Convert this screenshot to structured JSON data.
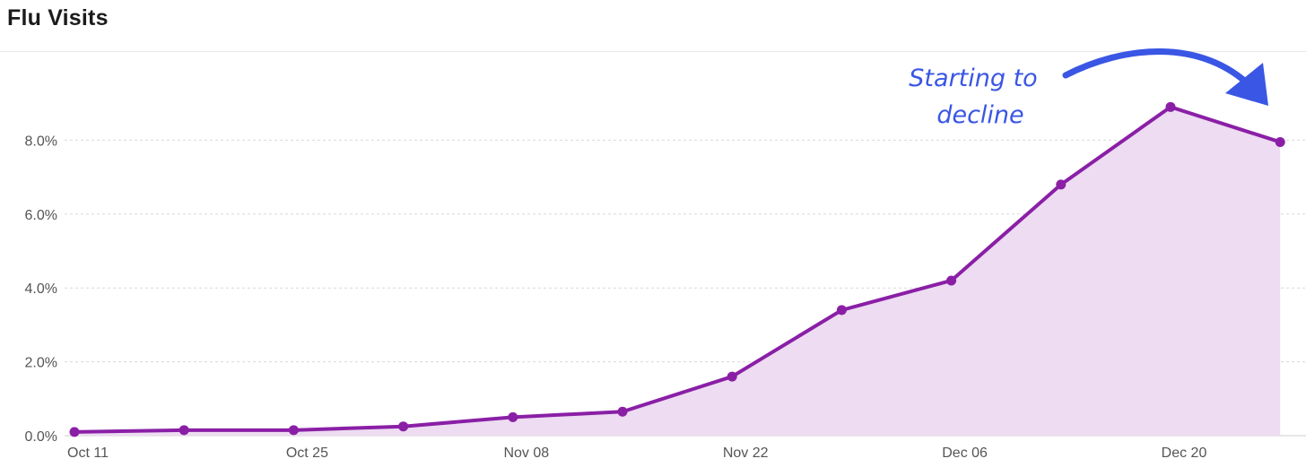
{
  "header": {
    "title": "Flu Visits"
  },
  "chart_data": {
    "type": "area",
    "title": "Flu Visits",
    "xlabel": "",
    "ylabel": "",
    "x": [
      "Oct 11",
      "Oct 18",
      "Oct 25",
      "Nov 01",
      "Nov 08",
      "Nov 15",
      "Nov 22",
      "Nov 29",
      "Dec 06",
      "Dec 13",
      "Dec 20",
      "Dec 27"
    ],
    "x_tick_labels": [
      "Oct 11",
      "Oct 25",
      "Nov 08",
      "Nov 22",
      "Dec 06",
      "Dec 20"
    ],
    "series": [
      {
        "values": [
          0.1,
          0.15,
          0.15,
          0.25,
          0.5,
          0.65,
          1.6,
          3.4,
          4.2,
          6.8,
          8.9,
          7.95
        ]
      }
    ],
    "y_tick_labels": [
      "0.0%",
      "2.0%",
      "4.0%",
      "6.0%",
      "8.0%"
    ],
    "y_ticks": [
      0,
      2,
      4,
      6,
      8
    ],
    "ylim": [
      0,
      10
    ],
    "grid": true,
    "colors": {
      "line": "#8a1fa6",
      "fill": "#eddcf2",
      "annotation": "#3a56e4",
      "grid": "#d9d9d9"
    },
    "annotation": {
      "line1": "Starting to",
      "line2": "decline"
    }
  }
}
